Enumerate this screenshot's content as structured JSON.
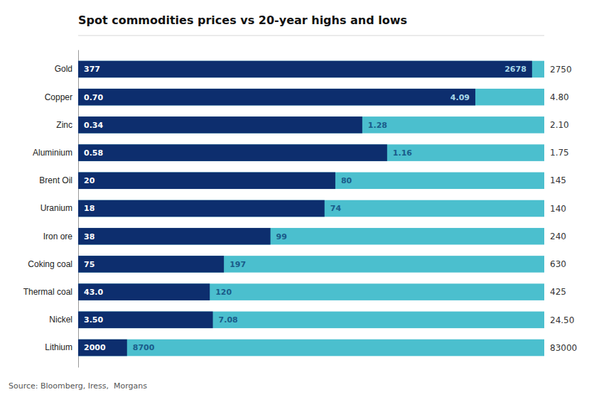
{
  "chart_data": {
    "type": "bar",
    "orientation": "horizontal",
    "title": "Spot commodities prices vs 20-year highs and lows",
    "annotations": [
      "Source: Bloomberg, Iress,  Morgans"
    ],
    "categories": [
      "Gold",
      "Copper",
      "Zinc",
      "Aluminium",
      "Brent Oil",
      "Uranium",
      "Iron ore",
      "Coking coal",
      "Thermal coal",
      "Nickel",
      "Lithium"
    ],
    "series": [
      {
        "color": "#4bbfce",
        "values": [
          2750,
          4.8,
          2.1,
          1.75,
          145,
          140,
          240,
          630,
          425,
          24.5,
          83000
        ],
        "value_labels": [
          "2750",
          "4.80",
          "2.10",
          "1.75",
          "145",
          "140",
          "240",
          "630",
          "425",
          "24.50",
          "83000"
        ]
      },
      {
        "color": "#0d2e6e",
        "values": [
          2678,
          4.09,
          1.28,
          1.16,
          80,
          74,
          99,
          197,
          120,
          7.08,
          8700
        ],
        "value_labels": [
          "2678",
          "4.09",
          "1.28",
          "1.16",
          "80",
          "74",
          "99",
          "197",
          "120",
          "7.08",
          "8700"
        ]
      },
      {
        "values": [
          377,
          0.7,
          0.34,
          0.58,
          20,
          18,
          38,
          75,
          43.0,
          3.5,
          2000
        ],
        "value_labels": [
          "377",
          "0.70",
          "0.34",
          "0.58",
          "20",
          "18",
          "38",
          "75",
          "43.0",
          "3.50",
          "2000"
        ]
      }
    ],
    "data_labels": true,
    "tick_labels": "y",
    "grid": false
  }
}
